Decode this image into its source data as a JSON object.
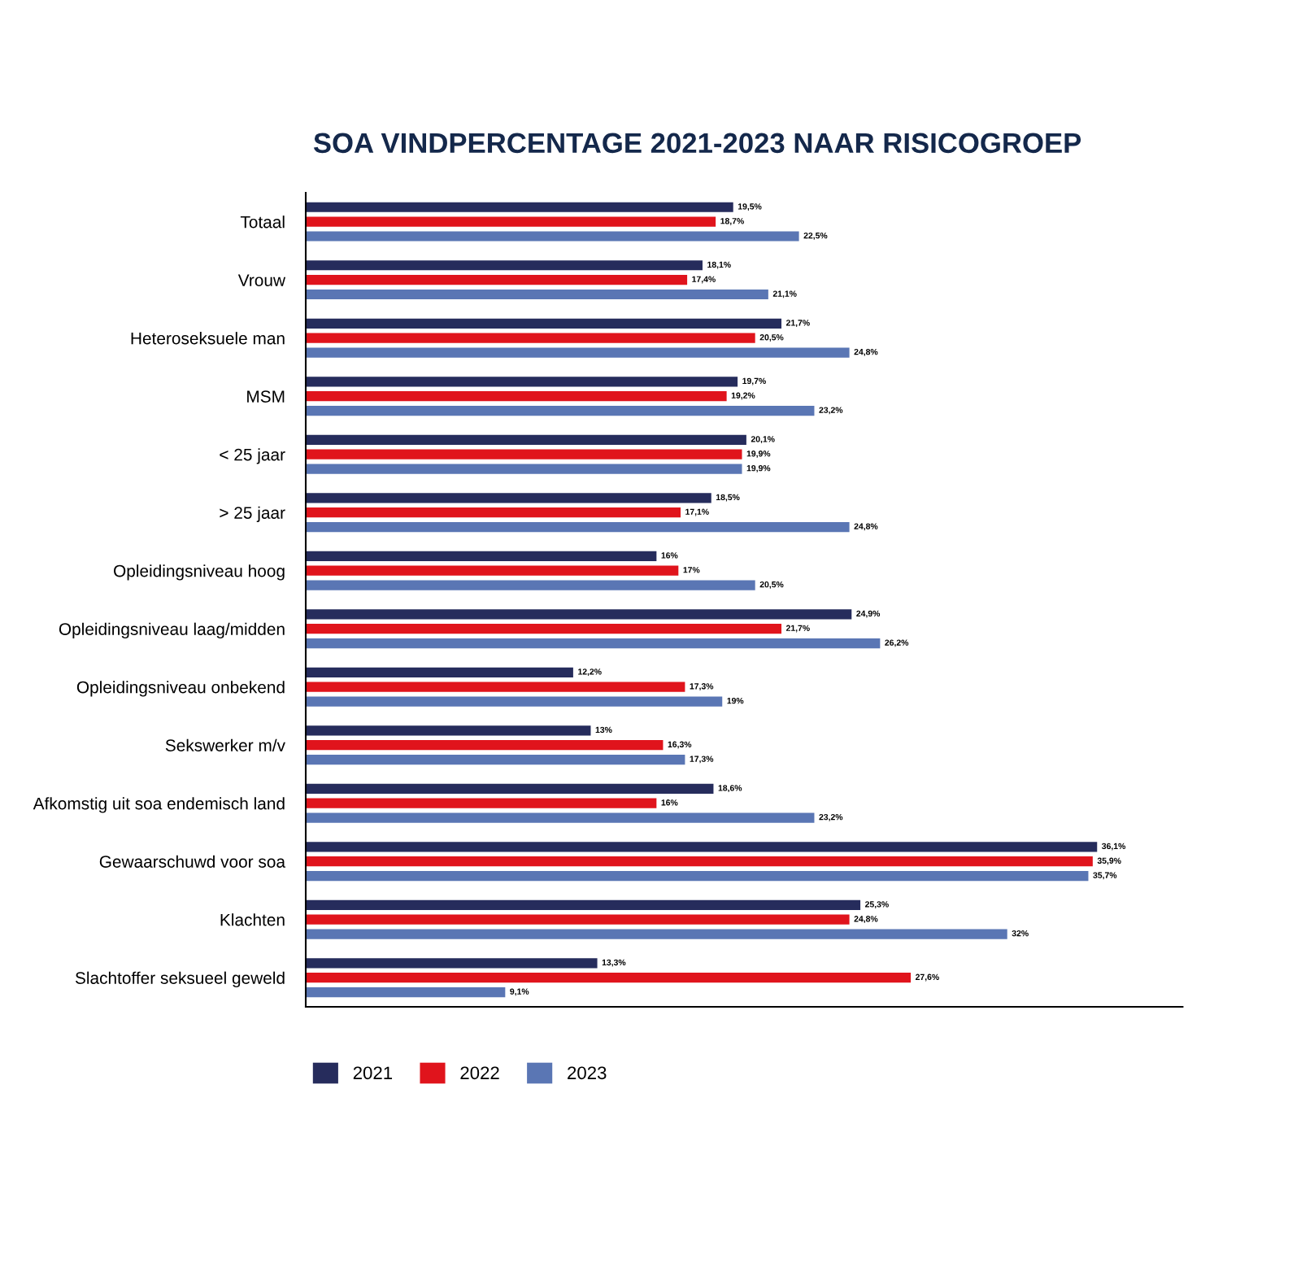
{
  "chart_data": {
    "type": "bar",
    "orientation": "horizontal",
    "title": "SOA VINDPERCENTAGE 2021-2023 NAAR RISICOGROEP",
    "categories": [
      "Totaal",
      "Vrouw",
      "Heteroseksuele man",
      "MSM",
      "< 25 jaar",
      "> 25 jaar",
      "Opleidingsniveau hoog",
      "Opleidingsniveau laag/midden",
      "Opleidingsniveau onbekend",
      "Sekswerker m/v",
      "Afkomstig uit soa endemisch land",
      "Gewaarschuwd voor soa",
      "Klachten",
      "Slachtoffer seksueel geweld"
    ],
    "series": [
      {
        "name": "2021",
        "color": "#262c5c",
        "values": [
          19.5,
          18.1,
          21.7,
          19.7,
          20.1,
          18.5,
          16,
          24.9,
          12.2,
          13,
          18.6,
          36.1,
          25.3,
          13.3
        ],
        "value_labels": [
          "19,5%",
          "18,1%",
          "21,7%",
          "19,7%",
          "20,1%",
          "18,5%",
          "16%",
          "24,9%",
          "12,2%",
          "13%",
          "18,6%",
          "36,1%",
          "25,3%",
          "13,3%"
        ]
      },
      {
        "name": "2022",
        "color": "#e0141c",
        "values": [
          18.7,
          17.4,
          20.5,
          19.2,
          19.9,
          17.1,
          17,
          21.7,
          17.3,
          16.3,
          16,
          35.9,
          24.8,
          27.6
        ],
        "value_labels": [
          "18,7%",
          "17,4%",
          "20,5%",
          "19,2%",
          "19,9%",
          "17,1%",
          "17%",
          "21,7%",
          "17,3%",
          "16,3%",
          "16%",
          "35,9%",
          "24,8%",
          "27,6%"
        ]
      },
      {
        "name": "2023",
        "color": "#5a76b4",
        "values": [
          22.5,
          21.1,
          24.8,
          23.2,
          19.9,
          24.8,
          20.5,
          26.2,
          19,
          17.3,
          23.2,
          35.7,
          32,
          9.1
        ],
        "value_labels": [
          "22,5%",
          "21,1%",
          "24,8%",
          "23,2%",
          "19,9%",
          "24,8%",
          "20,5%",
          "26,2%",
          "19%",
          "17,3%",
          "23,2%",
          "35,7%",
          "32%",
          "9,1%"
        ]
      }
    ],
    "xlim": [
      0,
      40
    ],
    "tick_labels": "y",
    "grid": false,
    "legend": "bottom left"
  }
}
